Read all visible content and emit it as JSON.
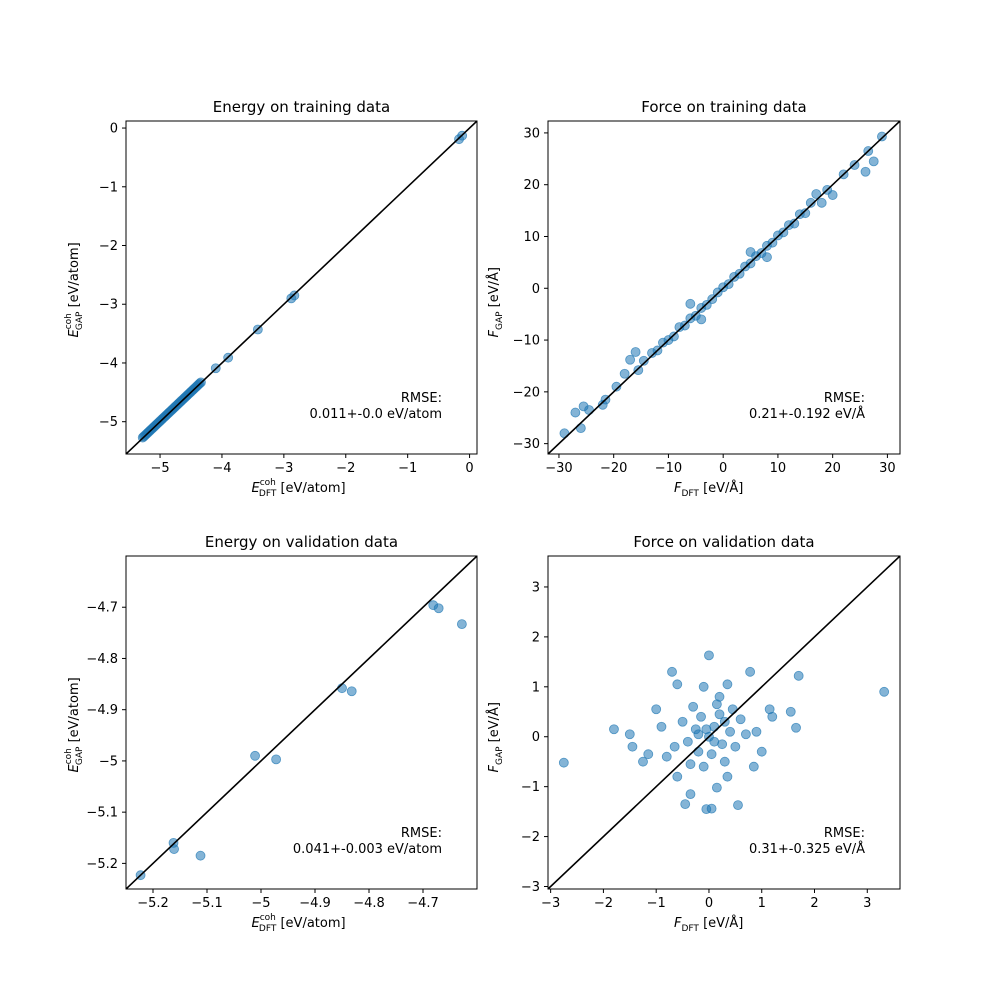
{
  "chart_data": [
    {
      "type": "scatter",
      "title": "Energy on training data",
      "xlabel": {
        "sym": "E",
        "sup": "coh",
        "sub": "DFT",
        "unit": " [eV/atom]"
      },
      "ylabel": {
        "sym": "E",
        "sup": "coh",
        "sub": "GAP",
        "unit": " [eV/atom]"
      },
      "xlim": [
        -5.55,
        0.12
      ],
      "ylim": [
        -5.55,
        0.12
      ],
      "xticks": [
        -5,
        -4,
        -3,
        -2,
        -1,
        0
      ],
      "yticks": [
        -5,
        -4,
        -3,
        -2,
        -1,
        0
      ],
      "rmse_label": "RMSE:",
      "rmse_value": "0.011+-0.0 eV/atom",
      "point_color": "#1f77b4",
      "point_alpha": 0.55,
      "diagonal": true,
      "points": [
        [
          -5.28,
          -5.27
        ],
        [
          -5.26,
          -5.25
        ],
        [
          -5.24,
          -5.23
        ],
        [
          -5.22,
          -5.21
        ],
        [
          -5.2,
          -5.19
        ],
        [
          -5.18,
          -5.17
        ],
        [
          -5.16,
          -5.15
        ],
        [
          -5.14,
          -5.13
        ],
        [
          -5.12,
          -5.11
        ],
        [
          -5.1,
          -5.09
        ],
        [
          -5.08,
          -5.07
        ],
        [
          -5.06,
          -5.05
        ],
        [
          -5.04,
          -5.03
        ],
        [
          -5.02,
          -5.01
        ],
        [
          -5.0,
          -4.99
        ],
        [
          -4.98,
          -4.97
        ],
        [
          -4.96,
          -4.95
        ],
        [
          -4.94,
          -4.93
        ],
        [
          -4.92,
          -4.91
        ],
        [
          -4.9,
          -4.89
        ],
        [
          -4.88,
          -4.87
        ],
        [
          -4.86,
          -4.85
        ],
        [
          -4.84,
          -4.83
        ],
        [
          -4.82,
          -4.81
        ],
        [
          -4.8,
          -4.79
        ],
        [
          -4.78,
          -4.77
        ],
        [
          -4.76,
          -4.75
        ],
        [
          -4.74,
          -4.73
        ],
        [
          -4.72,
          -4.71
        ],
        [
          -4.7,
          -4.69
        ],
        [
          -4.68,
          -4.67
        ],
        [
          -4.66,
          -4.65
        ],
        [
          -4.64,
          -4.63
        ],
        [
          -4.62,
          -4.61
        ],
        [
          -4.6,
          -4.59
        ],
        [
          -4.58,
          -4.57
        ],
        [
          -4.56,
          -4.55
        ],
        [
          -4.54,
          -4.53
        ],
        [
          -4.52,
          -4.51
        ],
        [
          -4.5,
          -4.49
        ],
        [
          -4.48,
          -4.47
        ],
        [
          -4.46,
          -4.45
        ],
        [
          -4.44,
          -4.43
        ],
        [
          -4.42,
          -4.41
        ],
        [
          -4.4,
          -4.39
        ],
        [
          -4.38,
          -4.37
        ],
        [
          -4.36,
          -4.35
        ],
        [
          -4.34,
          -4.33
        ],
        [
          -4.1,
          -4.09
        ],
        [
          -3.9,
          -3.91
        ],
        [
          -3.42,
          -3.43
        ],
        [
          -2.88,
          -2.9
        ],
        [
          -2.83,
          -2.85
        ],
        [
          -0.17,
          -0.19
        ],
        [
          -0.12,
          -0.13
        ]
      ]
    },
    {
      "type": "scatter",
      "title": "Force on training data",
      "xlabel": {
        "sym": "F",
        "sup": "",
        "sub": "DFT",
        "unit": " [eV/Å]"
      },
      "ylabel": {
        "sym": "F",
        "sup": "",
        "sub": "GAP",
        "unit": " [eV/Å]"
      },
      "xlim": [
        -32,
        32.3
      ],
      "ylim": [
        -32,
        32.3
      ],
      "xticks": [
        -30,
        -20,
        -10,
        0,
        10,
        20,
        30
      ],
      "yticks": [
        -30,
        -20,
        -10,
        0,
        10,
        20,
        30
      ],
      "rmse_label": "RMSE:",
      "rmse_value": "0.21+-0.192 eV/Å",
      "point_color": "#1f77b4",
      "point_alpha": 0.55,
      "diagonal": true,
      "points": [
        [
          -29,
          -28
        ],
        [
          -27,
          -24
        ],
        [
          -26,
          -27
        ],
        [
          -25.5,
          -22.8
        ],
        [
          -24.5,
          -23.5
        ],
        [
          -22,
          -22.5
        ],
        [
          -21.5,
          -21.5
        ],
        [
          -19.5,
          -19
        ],
        [
          -18,
          -16.5
        ],
        [
          -17,
          -13.8
        ],
        [
          -16,
          -12.3
        ],
        [
          -15.5,
          -15.8
        ],
        [
          -14.5,
          -14
        ],
        [
          -13,
          -12.5
        ],
        [
          -12,
          -12
        ],
        [
          -11,
          -10.5
        ],
        [
          -10,
          -10
        ],
        [
          -9,
          -9.3
        ],
        [
          -8,
          -7.5
        ],
        [
          -7,
          -7.2
        ],
        [
          -6,
          -5.8
        ],
        [
          -5,
          -5.3
        ],
        [
          -4,
          -3.8
        ],
        [
          -3,
          -3.2
        ],
        [
          -2,
          -2.1
        ],
        [
          -1,
          -0.8
        ],
        [
          0,
          0.2
        ],
        [
          1,
          0.8
        ],
        [
          2,
          2.2
        ],
        [
          3,
          2.8
        ],
        [
          4,
          4.2
        ],
        [
          5,
          4.8
        ],
        [
          6,
          6.2
        ],
        [
          7,
          6.8
        ],
        [
          8,
          8.2
        ],
        [
          9,
          8.8
        ],
        [
          10,
          10.2
        ],
        [
          11,
          10.8
        ],
        [
          12,
          12.2
        ],
        [
          13,
          12.5
        ],
        [
          14,
          14.3
        ],
        [
          15,
          14.5
        ],
        [
          16,
          16.5
        ],
        [
          17,
          18.2
        ],
        [
          18,
          16.5
        ],
        [
          19,
          19
        ],
        [
          20,
          18
        ],
        [
          22,
          22
        ],
        [
          24,
          23.8
        ],
        [
          26,
          22.5
        ],
        [
          26.5,
          26.5
        ],
        [
          27.5,
          24.5
        ],
        [
          29,
          29.3
        ],
        [
          -6,
          -3
        ],
        [
          -4,
          -6
        ],
        [
          5,
          7
        ],
        [
          8,
          6
        ]
      ]
    },
    {
      "type": "scatter",
      "title": "Energy on validation data",
      "xlabel": {
        "sym": "E",
        "sup": "coh",
        "sub": "DFT",
        "unit": " [eV/atom]"
      },
      "ylabel": {
        "sym": "E",
        "sup": "coh",
        "sub": "GAP",
        "unit": " [eV/atom]"
      },
      "xlim": [
        -5.25,
        -4.6
      ],
      "ylim": [
        -5.25,
        -4.6
      ],
      "xticks": [
        -5.2,
        -5.1,
        -5.0,
        -4.9,
        -4.8,
        -4.7
      ],
      "yticks": [
        -5.2,
        -5.1,
        -5.0,
        -4.9,
        -4.8,
        -4.7
      ],
      "rmse_label": "RMSE:",
      "rmse_value": "0.041+-0.003 eV/atom",
      "point_color": "#1f77b4",
      "point_alpha": 0.55,
      "diagonal": true,
      "points": [
        [
          -5.223,
          -5.223
        ],
        [
          -5.162,
          -5.16
        ],
        [
          -5.161,
          -5.172
        ],
        [
          -5.112,
          -5.185
        ],
        [
          -5.011,
          -4.99
        ],
        [
          -4.972,
          -4.997
        ],
        [
          -4.85,
          -4.858
        ],
        [
          -4.832,
          -4.864
        ],
        [
          -4.681,
          -4.696
        ],
        [
          -4.671,
          -4.702
        ],
        [
          -4.628,
          -4.733
        ]
      ]
    },
    {
      "type": "scatter",
      "title": "Force on validation data",
      "xlabel": {
        "sym": "F",
        "sup": "",
        "sub": "DFT",
        "unit": " [eV/Å]"
      },
      "ylabel": {
        "sym": "F",
        "sup": "",
        "sub": "GAP",
        "unit": " [eV/Å]"
      },
      "xlim": [
        -3.05,
        3.62
      ],
      "ylim": [
        -3.05,
        3.62
      ],
      "xticks": [
        -3,
        -2,
        -1,
        0,
        1,
        2,
        3
      ],
      "yticks": [
        -3,
        -2,
        -1,
        0,
        1,
        2,
        3
      ],
      "rmse_label": "RMSE:",
      "rmse_value": "0.31+-0.325 eV/Å",
      "point_color": "#1f77b4",
      "point_alpha": 0.55,
      "diagonal": true,
      "points": [
        [
          -2.75,
          -0.52
        ],
        [
          3.32,
          0.9
        ],
        [
          1.7,
          1.22
        ],
        [
          0,
          1.63
        ],
        [
          -0.7,
          1.3
        ],
        [
          0.78,
          1.3
        ],
        [
          -0.6,
          1.05
        ],
        [
          0.35,
          1.05
        ],
        [
          -1.8,
          0.15
        ],
        [
          -1.5,
          0.05
        ],
        [
          -1.45,
          -0.2
        ],
        [
          -1.25,
          -0.5
        ],
        [
          -1.0,
          0.55
        ],
        [
          -0.45,
          -1.35
        ],
        [
          -0.05,
          -1.45
        ],
        [
          0.05,
          -1.44
        ],
        [
          0.55,
          -1.37
        ],
        [
          -0.35,
          -1.15
        ],
        [
          0.15,
          -1.02
        ],
        [
          0.35,
          -0.8
        ],
        [
          0.85,
          -0.6
        ],
        [
          1.0,
          -0.3
        ],
        [
          1.55,
          0.5
        ],
        [
          1.65,
          0.18
        ],
        [
          1.15,
          0.55
        ],
        [
          -0.1,
          1.0
        ],
        [
          0.2,
          0.8
        ],
        [
          -0.3,
          0.6
        ],
        [
          0.45,
          0.55
        ],
        [
          -0.6,
          -0.8
        ],
        [
          0.6,
          0.35
        ],
        [
          -0.8,
          -0.4
        ],
        [
          0.9,
          0.1
        ],
        [
          -0.5,
          0.3
        ],
        [
          0.3,
          -0.5
        ],
        [
          -0.2,
          -0.3
        ],
        [
          0.1,
          0.2
        ],
        [
          -0.15,
          0.4
        ],
        [
          0.25,
          -0.15
        ],
        [
          -0.4,
          -0.1
        ],
        [
          0.4,
          0.1
        ],
        [
          0,
          0
        ],
        [
          -0.1,
          -0.6
        ],
        [
          0.15,
          0.65
        ],
        [
          -0.25,
          0.15
        ],
        [
          0.05,
          -0.35
        ],
        [
          -0.65,
          -0.2
        ],
        [
          0.7,
          0.05
        ],
        [
          -1.15,
          -0.35
        ],
        [
          1.2,
          0.4
        ],
        [
          -0.9,
          0.2
        ],
        [
          0.5,
          -0.2
        ],
        [
          -0.35,
          -0.55
        ],
        [
          0.3,
          0.3
        ],
        [
          -0.05,
          0.15
        ],
        [
          0.1,
          -0.1
        ],
        [
          -0.2,
          0.05
        ],
        [
          0.2,
          0.45
        ]
      ]
    }
  ]
}
